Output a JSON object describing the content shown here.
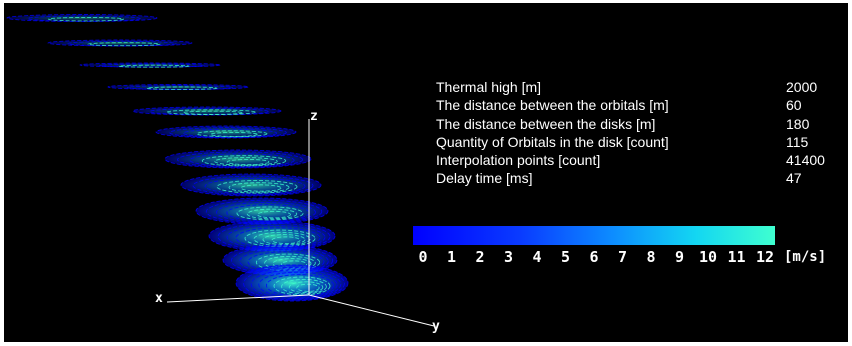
{
  "parameters": [
    {
      "label": "Thermal high [m]",
      "value": "2000"
    },
    {
      "label": "The distance between the orbitals [m]",
      "value": "60"
    },
    {
      "label": "The distance between the disks [m]",
      "value": "180"
    },
    {
      "label": "Quantity of Orbitals  in the disk [count]",
      "value": "115"
    },
    {
      "label": "Interpolation points [count]",
      "value": "41400"
    },
    {
      "label": "Delay time [ms]",
      "value": "47"
    }
  ],
  "colorbar": {
    "ticks": [
      "0",
      "1",
      "2",
      "3",
      "4",
      "5",
      "6",
      "7",
      "8",
      "9",
      "10",
      "11",
      "12"
    ],
    "unit": "[m/s]",
    "colors": [
      "#0000ff",
      "#0d8cff",
      "#3fffd0"
    ]
  },
  "axes": {
    "x": "x",
    "y": "y",
    "z": "z"
  }
}
